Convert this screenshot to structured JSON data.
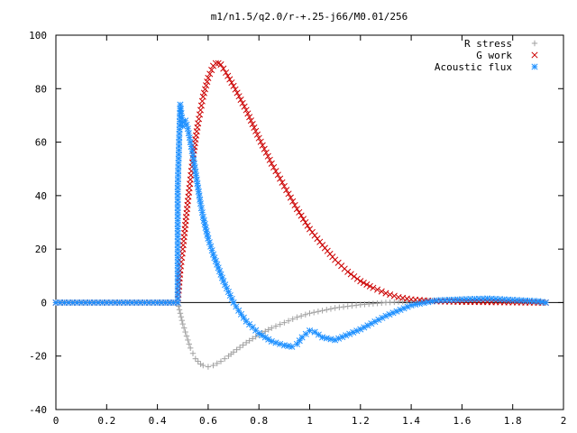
{
  "chart_data": {
    "type": "scatter",
    "title": "m1/n1.5/q2.0/r-+.25-j66/M0.01/256",
    "xlabel": "",
    "ylabel": "",
    "xlim": [
      0,
      2
    ],
    "ylim": [
      -40,
      100
    ],
    "x_ticks": [
      "0",
      "0.2",
      "0.4",
      "0.6",
      "0.8",
      "1",
      "1.2",
      "1.4",
      "1.6",
      "1.8",
      "2"
    ],
    "y_ticks": [
      "-40",
      "-20",
      "0",
      "20",
      "40",
      "60",
      "80",
      "100"
    ],
    "grid": false,
    "legend": "top-right",
    "series": [
      {
        "name": "R stress",
        "marker": "plus",
        "color": "#a0a0a0",
        "x": [
          0.0,
          0.1,
          0.2,
          0.3,
          0.4,
          0.48,
          0.49,
          0.5,
          0.51,
          0.52,
          0.53,
          0.54,
          0.55,
          0.56,
          0.57,
          0.58,
          0.6,
          0.62,
          0.65,
          0.68,
          0.7,
          0.75,
          0.8,
          0.85,
          0.9,
          0.95,
          1.0,
          1.05,
          1.1,
          1.2,
          1.3,
          1.4,
          1.5,
          1.6,
          1.7,
          1.8,
          1.9,
          1.93
        ],
        "y": [
          0,
          0,
          0,
          0,
          0,
          0,
          -4,
          -8,
          -11,
          -14,
          -17,
          -19,
          -21,
          -22,
          -23,
          -23.5,
          -24,
          -23.5,
          -22,
          -20,
          -18.5,
          -15,
          -12,
          -9.5,
          -7.5,
          -5.5,
          -4,
          -3,
          -2,
          -0.8,
          0,
          0.5,
          0.8,
          1.2,
          1.0,
          0.5,
          0.2,
          0
        ]
      },
      {
        "name": "G work",
        "marker": "cross",
        "color": "#cc0000",
        "x": [
          0.0,
          0.1,
          0.2,
          0.3,
          0.4,
          0.48,
          0.49,
          0.5,
          0.51,
          0.52,
          0.53,
          0.54,
          0.55,
          0.56,
          0.57,
          0.58,
          0.6,
          0.62,
          0.63,
          0.64,
          0.65,
          0.67,
          0.7,
          0.75,
          0.8,
          0.85,
          0.9,
          0.95,
          1.0,
          1.05,
          1.1,
          1.15,
          1.2,
          1.25,
          1.3,
          1.35,
          1.4,
          1.45,
          1.5,
          1.6,
          1.7,
          1.8,
          1.9,
          1.93
        ],
        "y": [
          0,
          0,
          0,
          0,
          0,
          0,
          12,
          20,
          29,
          38,
          46,
          54,
          61,
          67,
          72,
          77,
          84,
          88.5,
          89.5,
          89.5,
          89,
          86,
          81,
          72,
          61.5,
          52,
          43.5,
          35,
          27.5,
          21.5,
          16,
          11.5,
          8,
          5.5,
          3.5,
          2,
          1.2,
          0.8,
          0.5,
          0.3,
          0.2,
          0.1,
          0,
          0
        ]
      },
      {
        "name": "Acoustic flux",
        "marker": "star",
        "color": "#1e90ff",
        "x": [
          0.0,
          0.1,
          0.2,
          0.3,
          0.4,
          0.48,
          0.48,
          0.49,
          0.5,
          0.51,
          0.52,
          0.53,
          0.54,
          0.55,
          0.56,
          0.57,
          0.58,
          0.59,
          0.6,
          0.62,
          0.64,
          0.66,
          0.68,
          0.7,
          0.72,
          0.75,
          0.8,
          0.85,
          0.9,
          0.93,
          0.95,
          0.97,
          1.0,
          1.02,
          1.05,
          1.1,
          1.2,
          1.3,
          1.4,
          1.5,
          1.6,
          1.7,
          1.8,
          1.9,
          1.93
        ],
        "y": [
          0,
          0,
          0,
          0,
          0,
          0,
          43,
          74,
          66,
          68,
          65,
          60,
          55,
          49,
          43,
          37,
          32,
          28,
          24,
          18,
          13,
          8,
          4,
          0,
          -3,
          -7,
          -11.5,
          -14.5,
          -16,
          -16.5,
          -15.5,
          -13,
          -10.5,
          -11,
          -13,
          -14,
          -10,
          -5,
          -1,
          0.8,
          1.2,
          1.5,
          1.0,
          0.5,
          0
        ]
      }
    ]
  }
}
